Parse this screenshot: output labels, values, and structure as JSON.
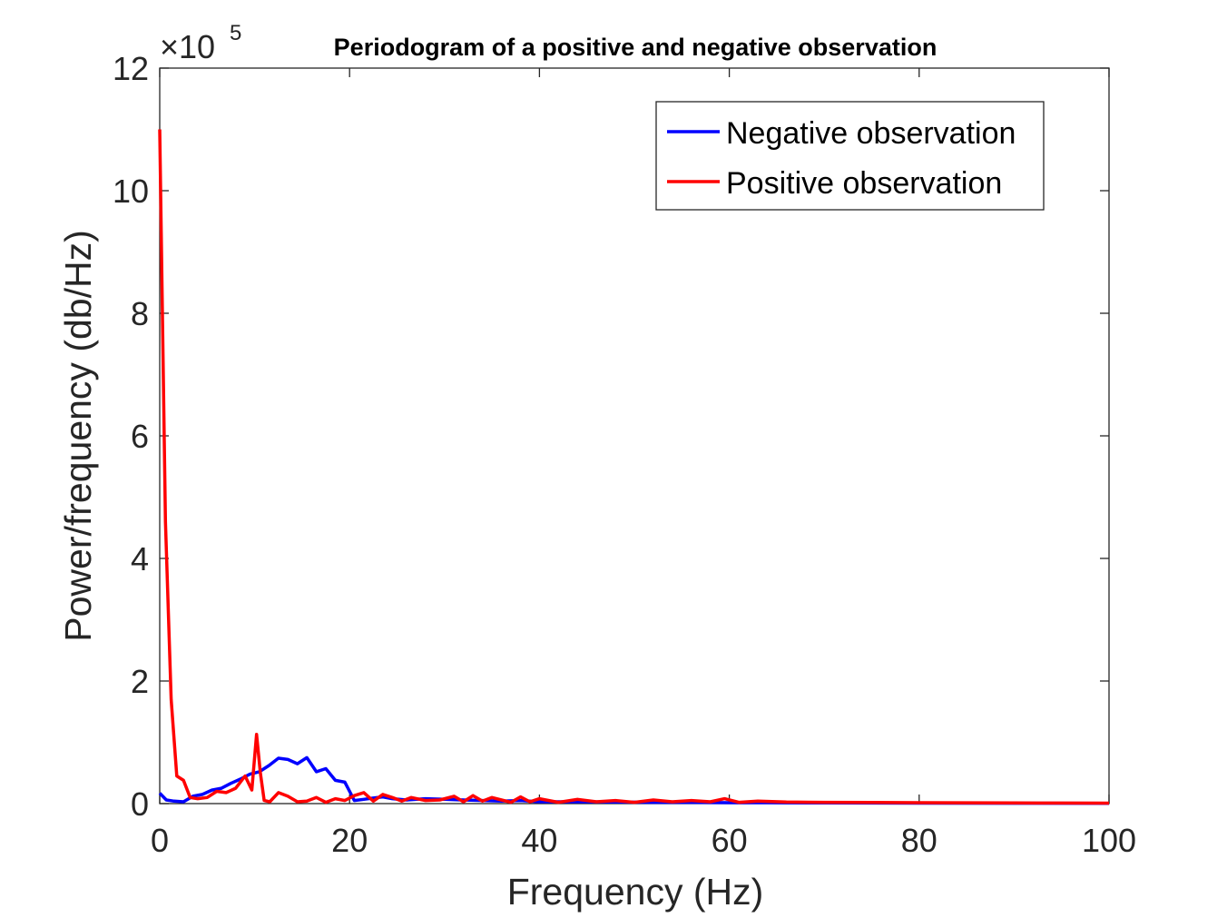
{
  "chart_data": {
    "type": "line",
    "title": "Periodogram of a positive and negative observation",
    "xlabel": "Frequency (Hz)",
    "ylabel": "Power/frequency (db/Hz)",
    "xlim": [
      0,
      100
    ],
    "ylim": [
      0,
      1200000
    ],
    "x_ticks": [
      0,
      20,
      40,
      60,
      80,
      100
    ],
    "x_tick_labels": [
      "0",
      "20",
      "40",
      "60",
      "80",
      "100"
    ],
    "y_ticks": [
      0,
      200000,
      400000,
      600000,
      800000,
      1000000,
      1200000
    ],
    "y_tick_labels": [
      "0",
      "2",
      "4",
      "6",
      "8",
      "10",
      "12"
    ],
    "y_exponent_label": "×10",
    "y_exponent_power": "5",
    "grid": false,
    "legend_placement": "top-right",
    "series": [
      {
        "name": "Negative observation",
        "color": "#0000ff",
        "x": [
          0,
          0.7,
          1.5,
          2.5,
          3.5,
          4.5,
          5.5,
          6.5,
          7.5,
          8.5,
          9.5,
          10.5,
          11.5,
          12.5,
          13.5,
          14.5,
          15.5,
          16.5,
          17.5,
          18.5,
          19.5,
          20.5,
          21.5,
          22.5,
          23.5,
          24.5,
          26,
          28,
          30,
          32,
          34,
          36,
          38,
          40,
          44,
          48,
          52,
          56,
          60,
          64,
          70,
          80,
          90,
          100
        ],
        "y": [
          17000,
          6000,
          4000,
          3000,
          12000,
          15000,
          22000,
          25000,
          33000,
          40000,
          48000,
          52000,
          62000,
          74000,
          72000,
          65000,
          75000,
          52000,
          57000,
          38000,
          35000,
          5000,
          7000,
          9000,
          11000,
          8000,
          6000,
          8000,
          7000,
          6000,
          5000,
          4000,
          5000,
          3000,
          3000,
          2500,
          2000,
          2000,
          1500,
          1500,
          1000,
          800,
          600,
          500
        ]
      },
      {
        "name": "Positive observation",
        "color": "#ff0000",
        "x": [
          0,
          0.6,
          1.2,
          1.8,
          2.5,
          3.2,
          4,
          5,
          6,
          7,
          8,
          9,
          9.7,
          10.2,
          10.6,
          11,
          11.6,
          12.5,
          13.5,
          14.5,
          15.5,
          16.5,
          17.5,
          18.5,
          19.5,
          20.5,
          21.5,
          22.5,
          23.5,
          24.5,
          25.5,
          26.5,
          28,
          29.5,
          31,
          32,
          33,
          34,
          35,
          36,
          37,
          38,
          39,
          40,
          42,
          44,
          46,
          48,
          50,
          52,
          54,
          56,
          58,
          59.5,
          61,
          63,
          66,
          70,
          75,
          80,
          85,
          90,
          95,
          100
        ],
        "y": [
          1100000,
          460000,
          170000,
          45000,
          38000,
          10000,
          8000,
          10000,
          20000,
          18000,
          25000,
          45000,
          22000,
          113000,
          50000,
          5000,
          3000,
          18000,
          12000,
          3000,
          4000,
          10000,
          2000,
          8000,
          5000,
          13000,
          18000,
          4000,
          15000,
          10000,
          4000,
          10000,
          5000,
          6000,
          12000,
          3000,
          13000,
          4000,
          10000,
          6000,
          2000,
          11000,
          3000,
          8000,
          2000,
          7000,
          3000,
          5000,
          2000,
          6000,
          3000,
          5000,
          3000,
          8000,
          2000,
          4000,
          2500,
          2000,
          1800,
          1500,
          1300,
          1000,
          900,
          800
        ]
      }
    ]
  }
}
